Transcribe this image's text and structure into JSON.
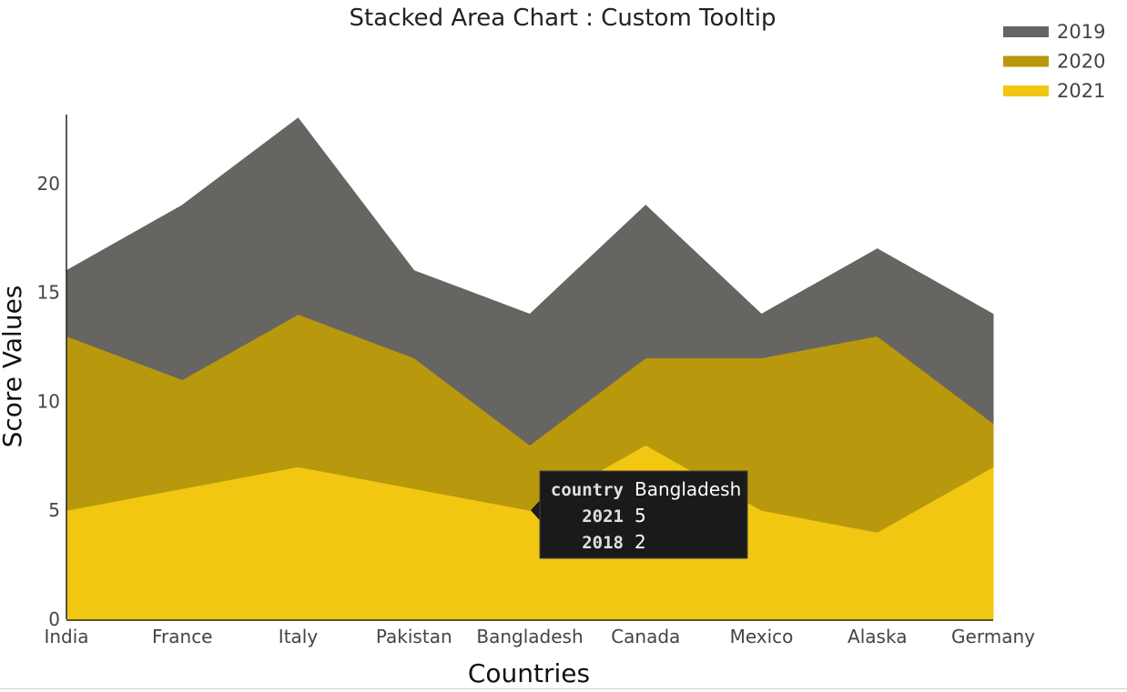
{
  "chart_data": {
    "type": "area",
    "stacked": true,
    "title": "Stacked Area Chart : Custom Tooltip",
    "xlabel": "Countries",
    "ylabel": "Score Values",
    "categories": [
      "India",
      "France",
      "Italy",
      "Pakistan",
      "Bangladesh",
      "Canada",
      "Mexico",
      "Alaska",
      "Germany"
    ],
    "series": [
      {
        "name": "2021",
        "color": "#f1c711",
        "values": [
          5,
          6,
          7,
          6,
          5,
          8,
          5,
          4,
          7
        ]
      },
      {
        "name": "2020",
        "color": "#b8980c",
        "values": [
          8,
          5,
          7,
          6,
          3,
          4,
          7,
          9,
          2
        ]
      },
      {
        "name": "2019",
        "color": "#676561",
        "values": [
          3,
          8,
          9,
          4,
          6,
          7,
          2,
          4,
          5
        ]
      }
    ],
    "ylim": [
      0,
      24
    ],
    "yticks": [
      0,
      5,
      10,
      15,
      20
    ],
    "legend": {
      "placement": "top-right",
      "order": [
        "2019",
        "2020",
        "2021"
      ]
    },
    "grid": false,
    "tooltip": {
      "category": "Bangladesh",
      "rows": [
        {
          "key": "country",
          "value": "Bangladesh"
        },
        {
          "key": "2021",
          "value": "5"
        },
        {
          "key": "2018",
          "value": "2"
        }
      ]
    }
  }
}
